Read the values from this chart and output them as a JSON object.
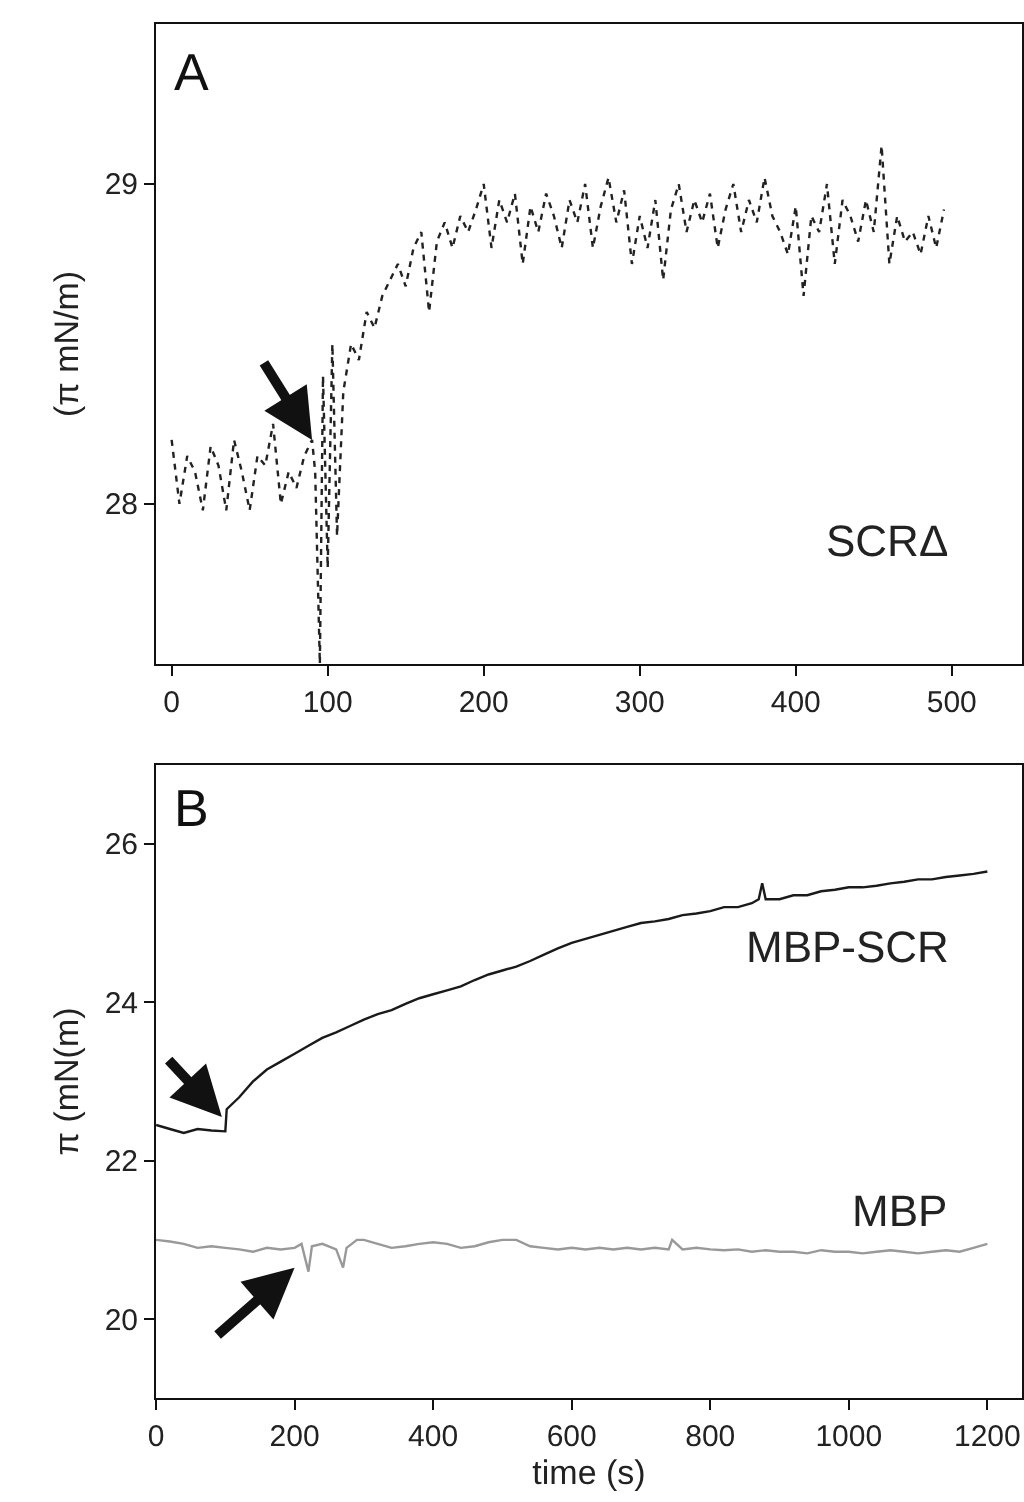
{
  "chart_data": [
    {
      "type": "line",
      "ylabel": "(π mN/m)",
      "annotations": [
        "A"
      ],
      "xlim": [
        -10,
        545
      ],
      "ylim": [
        27.5,
        29.5
      ],
      "xticks": [
        0,
        100,
        200,
        300,
        400,
        500
      ],
      "yticks": [
        28,
        29
      ],
      "marker": "none",
      "series": [
        {
          "name": "SCRΔ",
          "color": "#222222",
          "line_style": "dotted",
          "x": [
            0,
            5,
            10,
            15,
            20,
            25,
            30,
            35,
            40,
            45,
            50,
            55,
            60,
            65,
            70,
            75,
            80,
            85,
            90,
            92,
            95,
            97,
            100,
            103,
            106,
            110,
            115,
            120,
            125,
            130,
            135,
            140,
            145,
            150,
            155,
            160,
            165,
            170,
            175,
            180,
            185,
            190,
            195,
            200,
            205,
            210,
            215,
            220,
            225,
            230,
            235,
            240,
            245,
            250,
            255,
            260,
            265,
            270,
            275,
            280,
            285,
            290,
            295,
            300,
            305,
            310,
            315,
            320,
            325,
            330,
            335,
            340,
            345,
            350,
            355,
            360,
            365,
            370,
            375,
            380,
            385,
            390,
            395,
            400,
            405,
            410,
            415,
            420,
            425,
            430,
            435,
            440,
            445,
            450,
            455,
            460,
            465,
            470,
            475,
            480,
            485,
            490,
            495
          ],
          "values": [
            28.2,
            28.0,
            28.15,
            28.1,
            27.98,
            28.18,
            28.12,
            27.98,
            28.2,
            28.1,
            27.98,
            28.15,
            28.12,
            28.25,
            28.0,
            28.1,
            28.05,
            28.15,
            28.2,
            28.1,
            27.5,
            28.4,
            27.8,
            28.5,
            27.9,
            28.35,
            28.5,
            28.45,
            28.6,
            28.55,
            28.65,
            28.7,
            28.75,
            28.68,
            28.8,
            28.85,
            28.6,
            28.82,
            28.88,
            28.8,
            28.9,
            28.85,
            28.92,
            29.0,
            28.8,
            28.95,
            28.88,
            28.97,
            28.75,
            28.93,
            28.85,
            28.97,
            28.9,
            28.8,
            28.95,
            28.88,
            29.0,
            28.8,
            28.93,
            29.02,
            28.88,
            28.98,
            28.75,
            28.9,
            28.8,
            28.95,
            28.7,
            28.92,
            29.0,
            28.85,
            28.95,
            28.88,
            28.97,
            28.8,
            28.92,
            29.0,
            28.85,
            28.95,
            28.88,
            29.02,
            28.9,
            28.85,
            28.78,
            28.93,
            28.65,
            28.9,
            28.85,
            29.0,
            28.75,
            28.95,
            28.9,
            28.82,
            28.95,
            28.85,
            29.12,
            28.75,
            28.9,
            28.82,
            28.85,
            28.78,
            28.9,
            28.8,
            28.92
          ]
        }
      ]
    },
    {
      "type": "line",
      "xlabel": "time (s)",
      "ylabel": "π (mN(m)",
      "annotations": [
        "B"
      ],
      "xlim": [
        0,
        1250
      ],
      "ylim": [
        19,
        27
      ],
      "xticks": [
        0,
        200,
        400,
        600,
        800,
        1000,
        1200
      ],
      "yticks": [
        20,
        22,
        24,
        26
      ],
      "marker": "none",
      "series": [
        {
          "name": "MBP-SCR",
          "color": "#1a1a1a",
          "line_style": "solid",
          "x": [
            0,
            20,
            40,
            60,
            80,
            100,
            102,
            120,
            140,
            160,
            180,
            200,
            220,
            240,
            260,
            280,
            300,
            320,
            340,
            360,
            380,
            400,
            420,
            440,
            460,
            480,
            500,
            520,
            540,
            560,
            580,
            600,
            620,
            640,
            660,
            680,
            700,
            720,
            740,
            760,
            780,
            800,
            820,
            840,
            860,
            870,
            875,
            880,
            900,
            920,
            940,
            960,
            980,
            1000,
            1020,
            1040,
            1060,
            1080,
            1100,
            1120,
            1140,
            1160,
            1180,
            1200
          ],
          "values": [
            22.45,
            22.4,
            22.35,
            22.4,
            22.38,
            22.37,
            22.65,
            22.8,
            23.0,
            23.15,
            23.25,
            23.35,
            23.45,
            23.55,
            23.62,
            23.7,
            23.78,
            23.85,
            23.9,
            23.98,
            24.05,
            24.1,
            24.15,
            24.2,
            24.28,
            24.35,
            24.4,
            24.45,
            24.52,
            24.6,
            24.68,
            24.75,
            24.8,
            24.85,
            24.9,
            24.95,
            25.0,
            25.02,
            25.05,
            25.1,
            25.12,
            25.15,
            25.2,
            25.2,
            25.25,
            25.3,
            25.5,
            25.3,
            25.3,
            25.35,
            25.35,
            25.4,
            25.42,
            25.45,
            25.45,
            25.47,
            25.5,
            25.52,
            25.55,
            25.55,
            25.58,
            25.6,
            25.62,
            25.65
          ]
        },
        {
          "name": "MBP",
          "color": "#999999",
          "line_style": "solid",
          "x": [
            0,
            20,
            40,
            60,
            80,
            100,
            120,
            140,
            160,
            180,
            200,
            210,
            220,
            225,
            240,
            260,
            270,
            275,
            290,
            300,
            320,
            340,
            360,
            380,
            400,
            420,
            440,
            460,
            480,
            500,
            520,
            540,
            560,
            580,
            600,
            620,
            640,
            660,
            680,
            700,
            720,
            740,
            745,
            760,
            780,
            800,
            820,
            840,
            860,
            880,
            900,
            920,
            940,
            960,
            980,
            1000,
            1020,
            1040,
            1060,
            1080,
            1100,
            1120,
            1140,
            1160,
            1180,
            1200
          ],
          "values": [
            21.0,
            20.98,
            20.95,
            20.9,
            20.92,
            20.9,
            20.88,
            20.85,
            20.9,
            20.88,
            20.9,
            20.95,
            20.6,
            20.92,
            20.95,
            20.88,
            20.65,
            20.9,
            21.0,
            21.0,
            20.95,
            20.9,
            20.92,
            20.95,
            20.97,
            20.95,
            20.9,
            20.92,
            20.97,
            21.0,
            21.0,
            20.92,
            20.9,
            20.88,
            20.9,
            20.88,
            20.9,
            20.88,
            20.9,
            20.88,
            20.9,
            20.88,
            21.0,
            20.88,
            20.9,
            20.88,
            20.87,
            20.88,
            20.85,
            20.87,
            20.85,
            20.85,
            20.83,
            20.87,
            20.85,
            20.85,
            20.83,
            20.85,
            20.87,
            20.85,
            20.83,
            20.85,
            20.87,
            20.85,
            20.9,
            20.95
          ]
        }
      ]
    }
  ]
}
